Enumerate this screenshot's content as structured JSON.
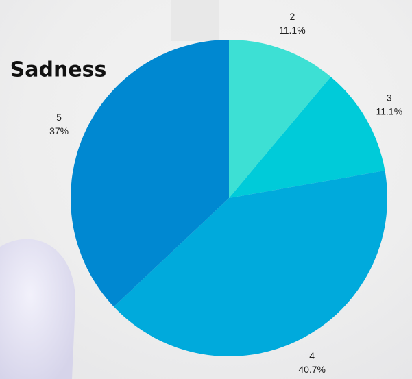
{
  "chart_data": {
    "type": "pie",
    "title": "Sadness",
    "categories": [
      "2",
      "3",
      "4",
      "5"
    ],
    "values": [
      11.1,
      11.1,
      40.7,
      37
    ],
    "value_labels": [
      "11.1%",
      "11.1%",
      "40.7%",
      "37%"
    ],
    "colors": [
      "#3de0d4",
      "#00cbd9",
      "#00aadc",
      "#0088d1"
    ]
  }
}
